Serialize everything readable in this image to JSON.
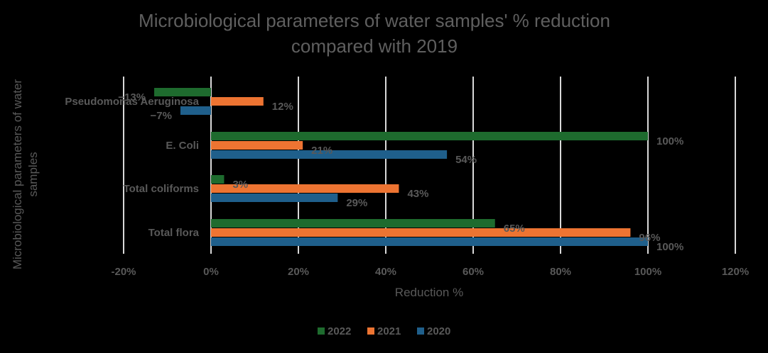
{
  "chart_data": {
    "type": "bar",
    "orientation": "horizontal",
    "title_lines": [
      "Microbiological parameters of water samples' % reduction",
      "compared with 2019"
    ],
    "xlabel": "Reduction %",
    "ylabel_lines": [
      "Microbiological parameters of water",
      "samples"
    ],
    "xlim": [
      -20,
      120
    ],
    "xticks": [
      -20,
      0,
      20,
      40,
      60,
      80,
      100,
      120
    ],
    "xtick_labels": [
      "-20%",
      "0%",
      "20%",
      "40%",
      "60%",
      "80%",
      "100%",
      "120%"
    ],
    "grid": true,
    "legend_position": "bottom",
    "categories": [
      "Pseudomonas Aeruginosa",
      "E. Coli",
      "Total coliforms",
      "Total flora"
    ],
    "series": [
      {
        "name": "2022",
        "color": "#1E6B2E",
        "values": [
          -13,
          100,
          3,
          65
        ],
        "labels": [
          "−13%",
          "100%",
          "3%",
          "65%"
        ]
      },
      {
        "name": "2021",
        "color": "#ED7432",
        "values": [
          12,
          21,
          43,
          96
        ],
        "labels": [
          "12%",
          "21%",
          "43%",
          "96%"
        ]
      },
      {
        "name": "2020",
        "color": "#1F5F8B",
        "values": [
          -7,
          54,
          29,
          100
        ],
        "labels": [
          "−7%",
          "54%",
          "29%",
          "100%"
        ]
      }
    ]
  }
}
